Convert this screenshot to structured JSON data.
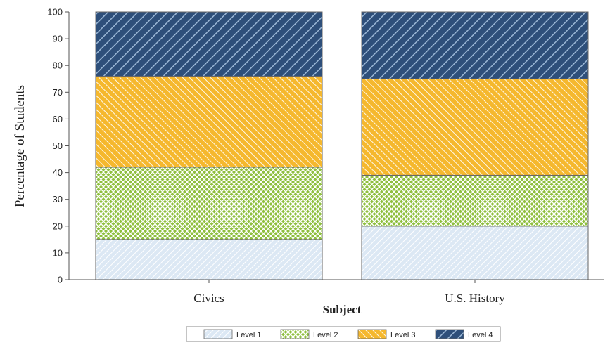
{
  "chart_data": {
    "type": "bar",
    "stacked": true,
    "categories": [
      "Civics",
      "U.S. History"
    ],
    "series": [
      {
        "name": "Level 1",
        "values": [
          15,
          20
        ],
        "color": "#dce8f4",
        "pattern": "light-diagonal"
      },
      {
        "name": "Level 2",
        "values": [
          27,
          19
        ],
        "color": "#8fbf3f",
        "pattern": "crosshatch"
      },
      {
        "name": "Level 3",
        "values": [
          34,
          36
        ],
        "color": "#f5b82e",
        "pattern": "diagonal"
      },
      {
        "name": "Level 4",
        "values": [
          24,
          25
        ],
        "color": "#2e4f7a",
        "pattern": "wide-diagonal"
      }
    ],
    "xlabel": "Subject",
    "ylabel": "Percentage of Students",
    "ylim": [
      0,
      100
    ],
    "yticks": [
      0,
      10,
      20,
      30,
      40,
      50,
      60,
      70,
      80,
      90,
      100
    ],
    "grid": false,
    "legend": "bottom"
  }
}
